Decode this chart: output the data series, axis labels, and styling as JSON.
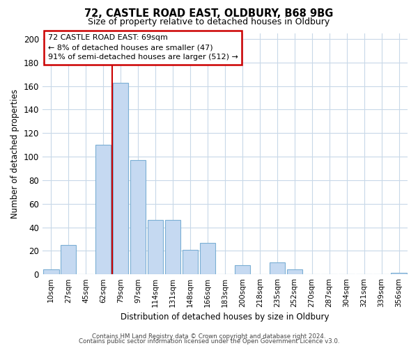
{
  "title": "72, CASTLE ROAD EAST, OLDBURY, B68 9BG",
  "subtitle": "Size of property relative to detached houses in Oldbury",
  "xlabel": "Distribution of detached houses by size in Oldbury",
  "ylabel": "Number of detached properties",
  "bar_labels": [
    "10sqm",
    "27sqm",
    "45sqm",
    "62sqm",
    "79sqm",
    "97sqm",
    "114sqm",
    "131sqm",
    "148sqm",
    "166sqm",
    "183sqm",
    "200sqm",
    "218sqm",
    "235sqm",
    "252sqm",
    "270sqm",
    "287sqm",
    "304sqm",
    "321sqm",
    "339sqm",
    "356sqm"
  ],
  "bar_values": [
    4,
    25,
    0,
    110,
    163,
    97,
    46,
    46,
    21,
    27,
    0,
    8,
    0,
    10,
    4,
    0,
    0,
    0,
    0,
    0,
    1
  ],
  "bar_color": "#c5d9f1",
  "bar_edge_color": "#7bafd4",
  "vline_bar_index": 4,
  "vline_color": "#cc0000",
  "ylim": [
    0,
    205
  ],
  "yticks": [
    0,
    20,
    40,
    60,
    80,
    100,
    120,
    140,
    160,
    180,
    200
  ],
  "annotation_line1": "72 CASTLE ROAD EAST: 69sqm",
  "annotation_line2": "← 8% of detached houses are smaller (47)",
  "annotation_line3": "91% of semi-detached houses are larger (512) →",
  "footer_line1": "Contains HM Land Registry data © Crown copyright and database right 2024.",
  "footer_line2": "Contains public sector information licensed under the Open Government Licence v3.0.",
  "background_color": "#ffffff",
  "grid_color": "#c8d8e8"
}
